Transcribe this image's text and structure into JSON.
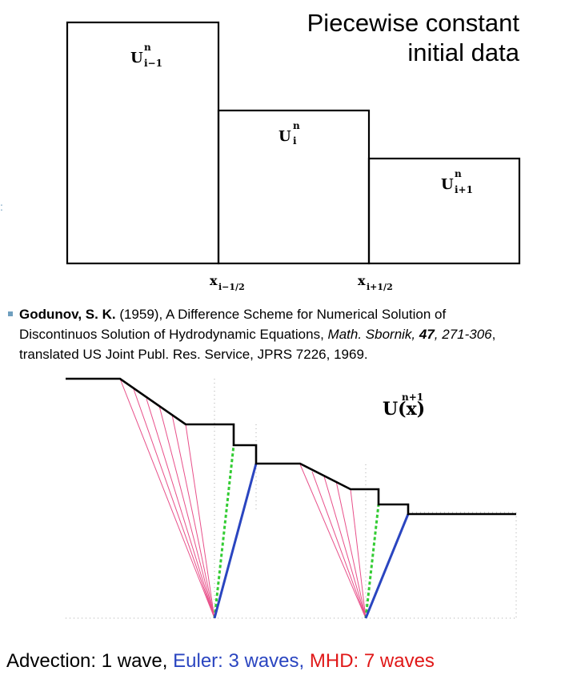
{
  "title_lines": [
    "Piecewise constant",
    "initial data"
  ],
  "cells": [
    {
      "sym": "U",
      "sup": "n",
      "sub": "i−1"
    },
    {
      "sym": "U",
      "sup": "n",
      "sub": "i"
    },
    {
      "sym": "U",
      "sup": "n",
      "sub": "i+1"
    }
  ],
  "interfaces": [
    {
      "sym": "x",
      "sub": "i−1/2"
    },
    {
      "sym": "x",
      "sub": "i+1/2"
    }
  ],
  "stray_mark": ":",
  "reference": {
    "author": "Godunov, S. K.",
    "year": "(1959), A Difference Scheme for Numerical Solution of",
    "line2_a": "Discontinuos Solution of Hydrodynamic Equations, ",
    "journal": "Math. Sbornik, ",
    "volume": "47",
    "pages": ", 271-306",
    "line2_b": ",",
    "line3": "translated US Joint Publ. Res. Service, JPRS 7226, 1969."
  },
  "solution_label": {
    "text": "U(x)",
    "sup": "n+1"
  },
  "caption": {
    "part1": "Advection: 1 wave, ",
    "part2": "Euler: 3 waves, ",
    "part3": "MHD: 7 waves"
  },
  "colors": {
    "line": "#000000",
    "fan": "#e8508a",
    "contact": "#33cc33",
    "shock": "#2a45c0",
    "mhd": "#e01818",
    "dotted": "#aaaaaa"
  }
}
